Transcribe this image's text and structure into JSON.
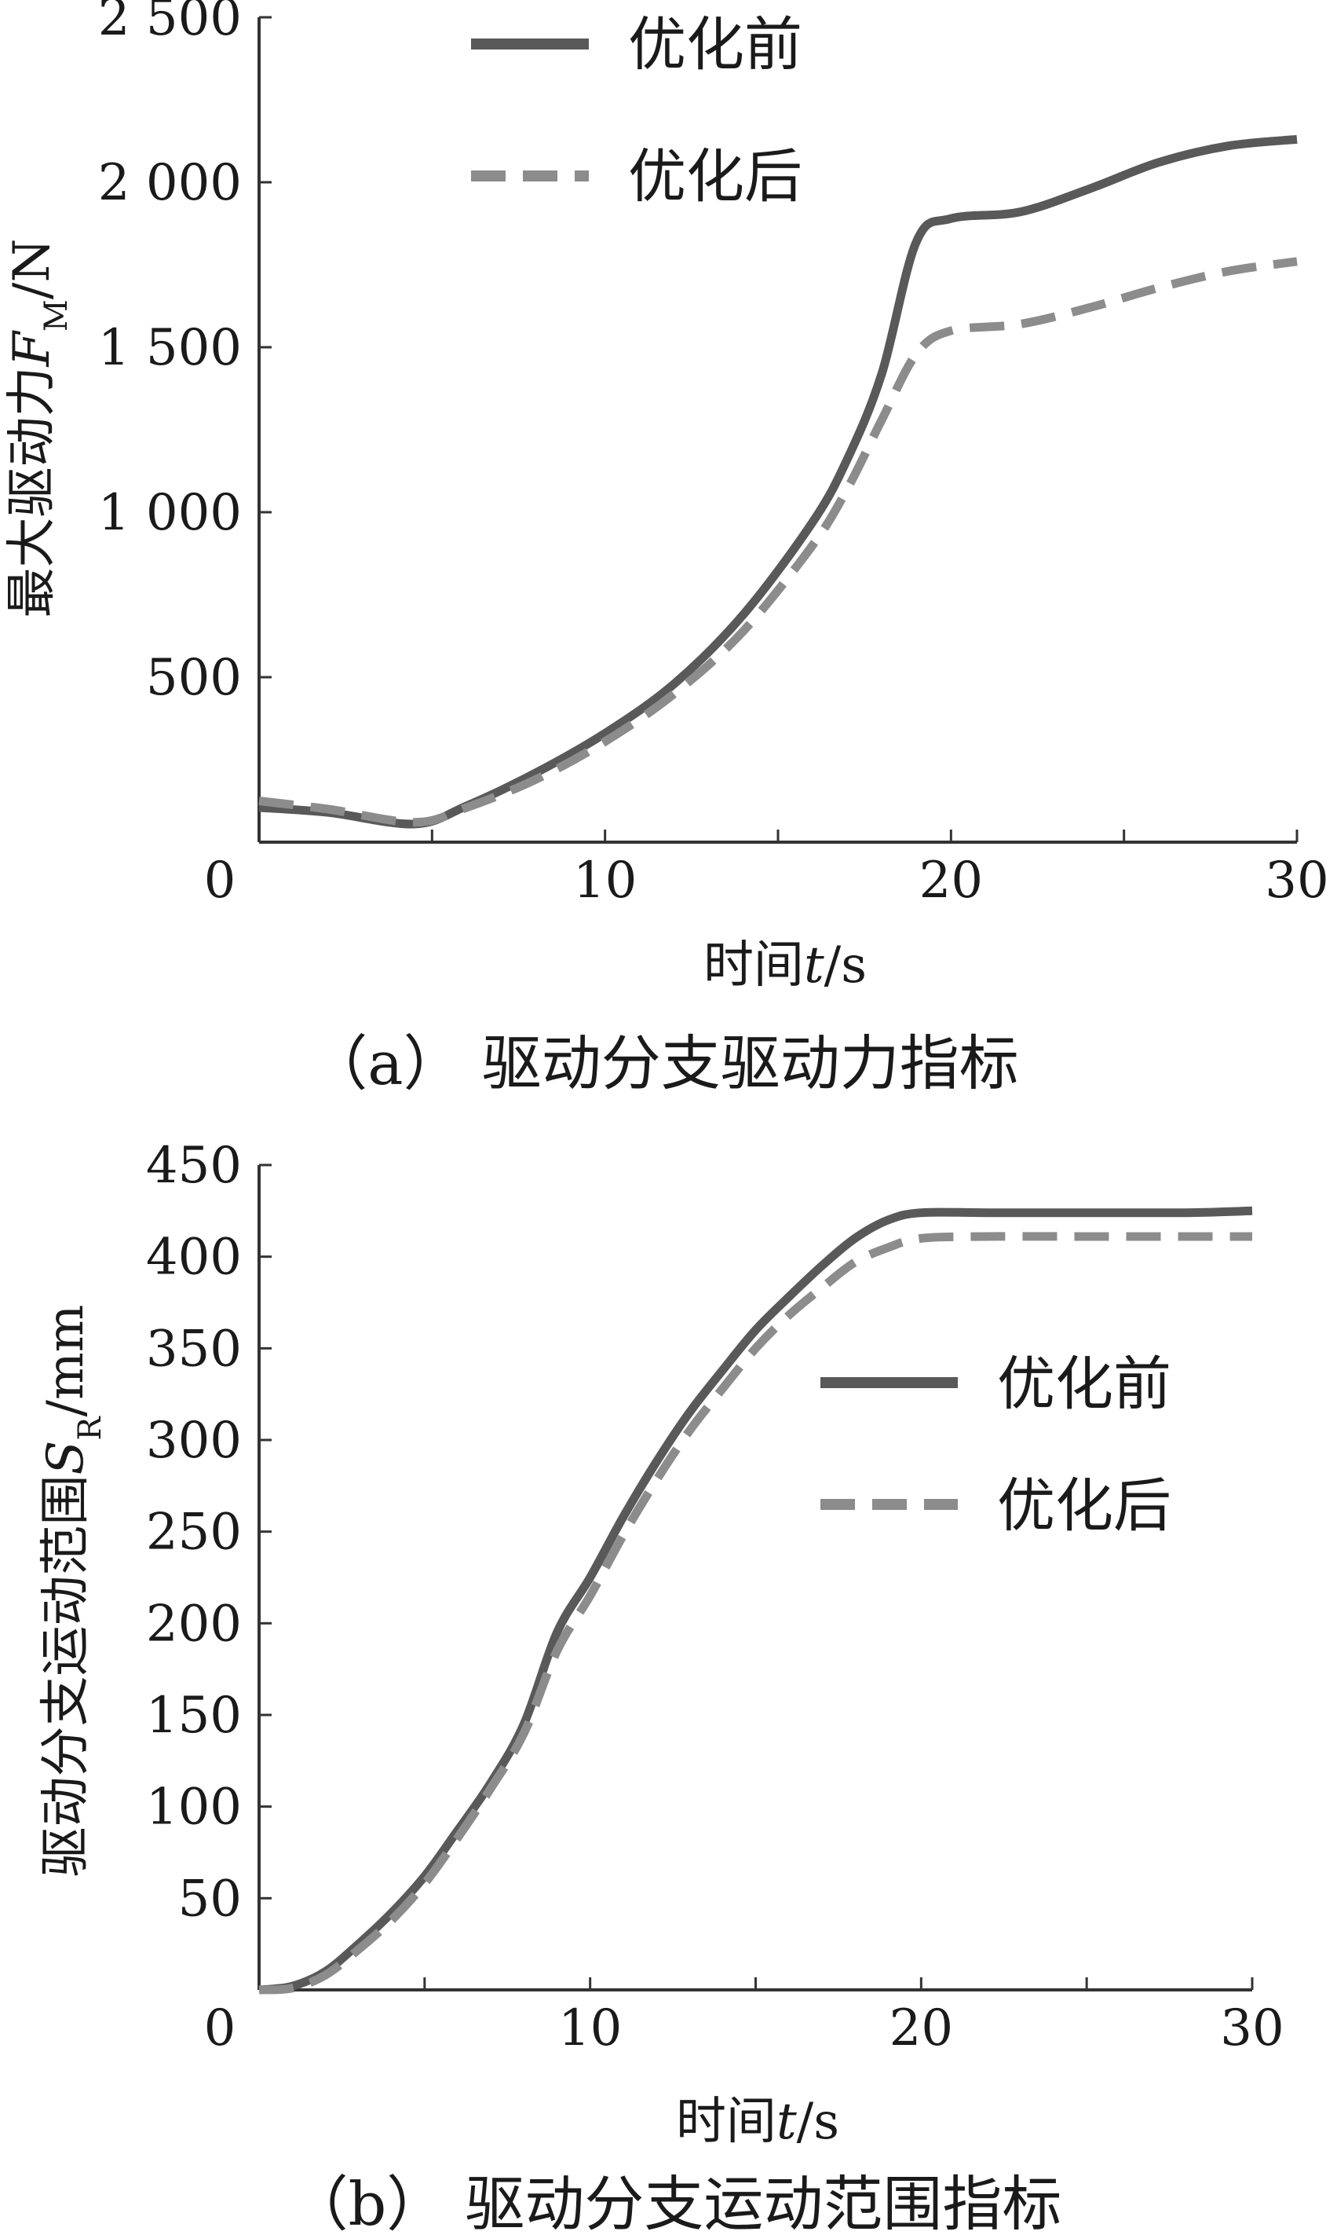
{
  "chart_data": [
    {
      "type": "line",
      "caption": "（a） 驱动分支驱动力指标",
      "xlabel": "时间t/s",
      "ylabel": "最大驱动力F_M/N",
      "xlim": [
        0,
        30
      ],
      "ylim": [
        0,
        2500
      ],
      "xticks": [
        0,
        10,
        20,
        30
      ],
      "xtick_labels": [
        "0",
        "10",
        "20",
        "30"
      ],
      "yticks": [
        500,
        1000,
        1500,
        2000,
        2500
      ],
      "ytick_labels": [
        "500",
        "1 000",
        "1 500",
        "2 000",
        "2 500"
      ],
      "legend_position": "top-center",
      "series": [
        {
          "name": "优化前",
          "style": "solid",
          "color": "#595959",
          "x": [
            0,
            2,
            4.5,
            6,
            8,
            10,
            12,
            14,
            16,
            17,
            18,
            19,
            20,
            22,
            24,
            26,
            28,
            30
          ],
          "y": [
            105,
            90,
            55,
            110,
            210,
            330,
            480,
            690,
            970,
            1160,
            1420,
            1820,
            1890,
            1910,
            1980,
            2060,
            2110,
            2130
          ]
        },
        {
          "name": "优化后",
          "style": "dashed",
          "color": "#8c8c8c",
          "x": [
            0,
            2,
            4.5,
            6,
            8,
            10,
            12,
            14,
            16,
            17,
            18,
            19,
            20,
            22,
            24,
            26,
            28,
            30
          ],
          "y": [
            125,
            100,
            60,
            105,
            190,
            305,
            450,
            640,
            900,
            1070,
            1280,
            1480,
            1550,
            1570,
            1620,
            1680,
            1730,
            1760
          ]
        }
      ]
    },
    {
      "type": "line",
      "caption": "（b） 驱动分支运动范围指标",
      "xlabel": "时间t/s",
      "ylabel": "驱动分支运动范围S_R/mm",
      "xlim": [
        0,
        30
      ],
      "ylim": [
        0,
        450
      ],
      "xticks": [
        0,
        10,
        20,
        30
      ],
      "xtick_labels": [
        "0",
        "10",
        "20",
        "30"
      ],
      "yticks": [
        50,
        100,
        150,
        200,
        250,
        300,
        350,
        400,
        450
      ],
      "ytick_labels": [
        "50",
        "100",
        "150",
        "200",
        "250",
        "300",
        "350",
        "400",
        "450"
      ],
      "legend_position": "right-center",
      "series": [
        {
          "name": "优化前",
          "style": "solid",
          "color": "#595959",
          "x": [
            0,
            1,
            2,
            3,
            4,
            5,
            6,
            7,
            8,
            9,
            10,
            11,
            12,
            13,
            14,
            15,
            16,
            17,
            18,
            19,
            20,
            22,
            25,
            28,
            30
          ],
          "y": [
            0,
            2,
            10,
            25,
            42,
            62,
            87,
            113,
            145,
            195,
            225,
            258,
            288,
            315,
            338,
            360,
            378,
            395,
            410,
            420,
            424,
            424,
            424,
            424,
            425
          ]
        },
        {
          "name": "优化后",
          "style": "dashed",
          "color": "#8c8c8c",
          "x": [
            0,
            1,
            2,
            3,
            4,
            5,
            6,
            7,
            8,
            9,
            10,
            11,
            12,
            13,
            14,
            15,
            16,
            17,
            18,
            19,
            20,
            22,
            25,
            28,
            30
          ],
          "y": [
            0,
            1,
            8,
            22,
            38,
            58,
            83,
            110,
            140,
            185,
            215,
            248,
            278,
            305,
            328,
            350,
            368,
            383,
            397,
            405,
            410,
            411,
            411,
            411,
            411
          ]
        }
      ]
    }
  ]
}
